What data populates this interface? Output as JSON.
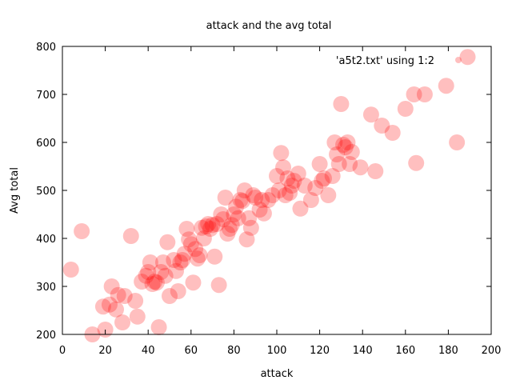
{
  "chart_data": {
    "type": "scatter",
    "title": "attack and the avg total",
    "xlabel": "attack",
    "ylabel": "Avg total",
    "xlim": [
      0,
      200
    ],
    "ylim": [
      200,
      800
    ],
    "xticks": [
      "0",
      "20",
      "40",
      "60",
      "80",
      "100",
      "120",
      "140",
      "160",
      "180",
      "200"
    ],
    "yticks": [
      "200",
      "300",
      "400",
      "500",
      "600",
      "700",
      "800"
    ],
    "grid": false,
    "legend": "top-right",
    "series": [
      {
        "name": "'a5t2.txt' using 1:2",
        "color": "#ff0000",
        "opacity": 0.25,
        "points": [
          [
            4,
            335
          ],
          [
            9,
            415
          ],
          [
            14,
            200
          ],
          [
            19,
            258
          ],
          [
            20,
            210
          ],
          [
            22,
            262
          ],
          [
            23,
            300
          ],
          [
            25,
            252
          ],
          [
            26,
            282
          ],
          [
            28,
            225
          ],
          [
            29,
            280
          ],
          [
            34,
            270
          ],
          [
            35,
            237
          ],
          [
            32,
            405
          ],
          [
            37,
            310
          ],
          [
            39,
            322
          ],
          [
            40,
            330
          ],
          [
            41,
            350
          ],
          [
            42,
            305
          ],
          [
            43,
            310
          ],
          [
            44,
            308
          ],
          [
            45,
            215
          ],
          [
            46,
            330
          ],
          [
            47,
            350
          ],
          [
            48,
            322
          ],
          [
            49,
            392
          ],
          [
            50,
            280
          ],
          [
            52,
            355
          ],
          [
            53,
            332
          ],
          [
            54,
            290
          ],
          [
            55,
            350
          ],
          [
            56,
            355
          ],
          [
            57,
            368
          ],
          [
            58,
            420
          ],
          [
            59,
            398
          ],
          [
            60,
            388
          ],
          [
            61,
            308
          ],
          [
            62,
            378
          ],
          [
            63,
            358
          ],
          [
            64,
            365
          ],
          [
            65,
            422
          ],
          [
            66,
            400
          ],
          [
            67,
            425
          ],
          [
            68,
            430
          ],
          [
            69,
            420
          ],
          [
            70,
            428
          ],
          [
            71,
            362
          ],
          [
            72,
            430
          ],
          [
            73,
            303
          ],
          [
            74,
            450
          ],
          [
            75,
            440
          ],
          [
            76,
            485
          ],
          [
            77,
            410
          ],
          [
            78,
            420
          ],
          [
            79,
            428
          ],
          [
            80,
            450
          ],
          [
            81,
            466
          ],
          [
            82,
            442
          ],
          [
            83,
            480
          ],
          [
            84,
            478
          ],
          [
            85,
            500
          ],
          [
            86,
            398
          ],
          [
            87,
            442
          ],
          [
            88,
            422
          ],
          [
            89,
            490
          ],
          [
            90,
            485
          ],
          [
            92,
            460
          ],
          [
            93,
            480
          ],
          [
            94,
            452
          ],
          [
            96,
            480
          ],
          [
            98,
            490
          ],
          [
            100,
            530
          ],
          [
            101,
            500
          ],
          [
            102,
            578
          ],
          [
            103,
            548
          ],
          [
            104,
            490
          ],
          [
            105,
            525
          ],
          [
            106,
            495
          ],
          [
            107,
            510
          ],
          [
            108,
            520
          ],
          [
            110,
            535
          ],
          [
            111,
            462
          ],
          [
            113,
            510
          ],
          [
            116,
            480
          ],
          [
            118,
            505
          ],
          [
            120,
            555
          ],
          [
            121,
            520
          ],
          [
            122,
            525
          ],
          [
            124,
            490
          ],
          [
            126,
            530
          ],
          [
            127,
            600
          ],
          [
            128,
            575
          ],
          [
            129,
            555
          ],
          [
            130,
            680
          ],
          [
            131,
            595
          ],
          [
            132,
            590
          ],
          [
            133,
            600
          ],
          [
            134,
            555
          ],
          [
            135,
            580
          ],
          [
            139,
            548
          ],
          [
            144,
            658
          ],
          [
            146,
            540
          ],
          [
            149,
            635
          ],
          [
            154,
            620
          ],
          [
            160,
            670
          ],
          [
            164,
            700
          ],
          [
            165,
            557
          ],
          [
            169,
            700
          ],
          [
            179,
            718
          ],
          [
            184,
            600
          ],
          [
            189,
            778
          ]
        ]
      }
    ]
  }
}
